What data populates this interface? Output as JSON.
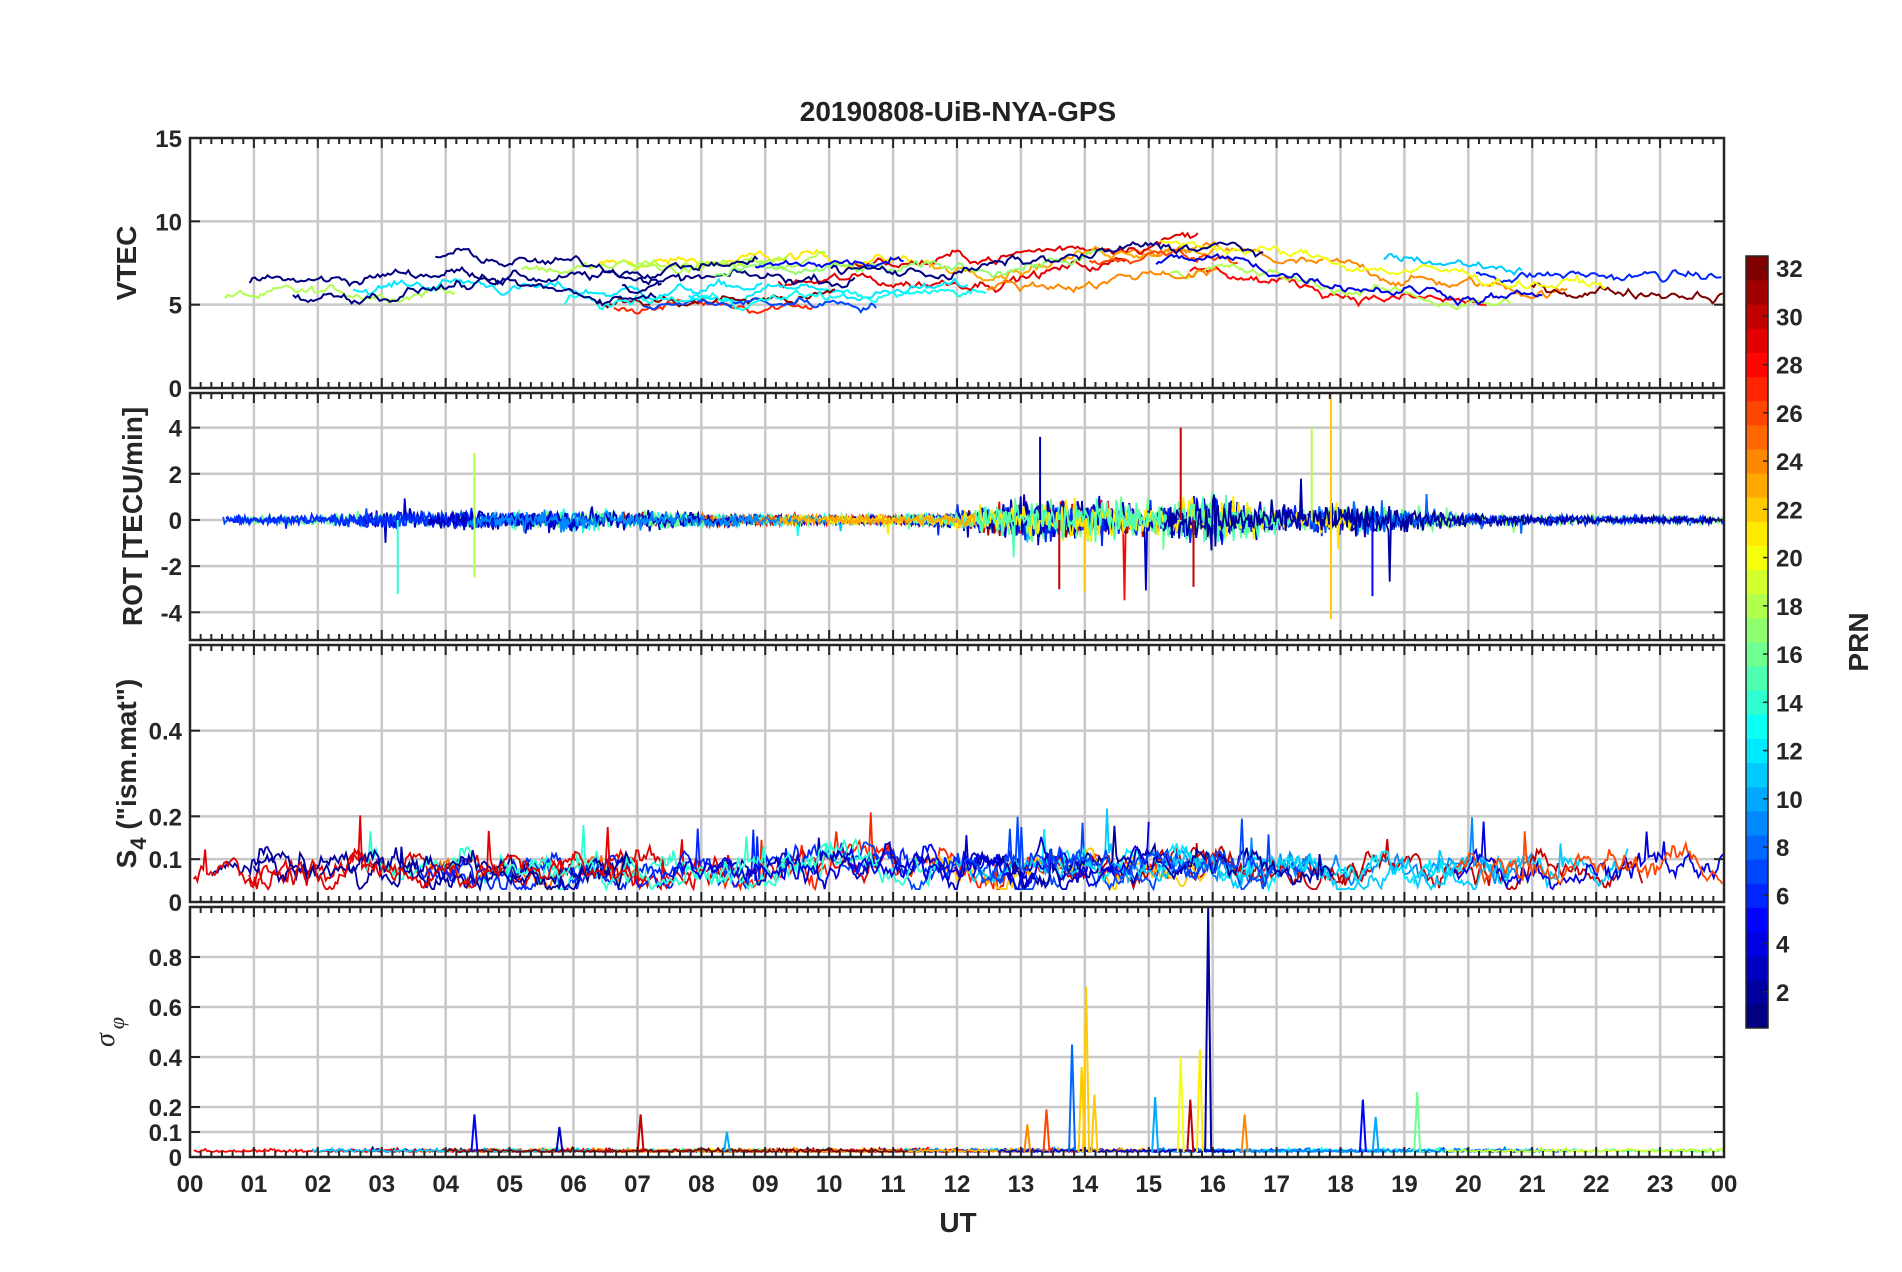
{
  "chart_data": [
    {
      "type": "line",
      "title": "20190808-UiB-NYA-GPS",
      "xlabel": "",
      "ylabel": "VTEC",
      "xlim": [
        0,
        24
      ],
      "ylim": [
        0,
        15
      ],
      "yticks": [
        "0",
        "5",
        "10",
        "15"
      ],
      "xticks": [
        "00",
        "01",
        "02",
        "03",
        "04",
        "05",
        "06",
        "07",
        "08",
        "09",
        "10",
        "11",
        "12",
        "13",
        "14",
        "15",
        "16",
        "17",
        "18",
        "19",
        "20",
        "21",
        "22",
        "23",
        "00"
      ],
      "grid": true,
      "series_note_values": {
        "baseline_by_hour": [
          6.0,
          5.8,
          6.0,
          6.5,
          6.8,
          6.2,
          6.0,
          6.2,
          6.3,
          6.4,
          6.6,
          6.4,
          6.8,
          7.2,
          7.6,
          8.2,
          8.0,
          7.2,
          6.8,
          6.4,
          6.0,
          5.8,
          5.6,
          5.6,
          5.5
        ]
      }
    },
    {
      "type": "line",
      "ylabel": "ROT [TECU/min]",
      "xlim": [
        0,
        24
      ],
      "ylim": [
        -5.2,
        5.5
      ],
      "yticks": [
        "-4",
        "-2",
        "0",
        "2",
        "4"
      ],
      "grid": true,
      "activity_by_hour": [
        0.15,
        0.2,
        0.25,
        0.4,
        0.45,
        0.4,
        0.5,
        0.45,
        0.3,
        0.25,
        0.2,
        0.2,
        0.3,
        0.9,
        1.0,
        0.7,
        1.2,
        0.6,
        0.7,
        0.6,
        0.3,
        0.2,
        0.2,
        0.2,
        0.15
      ]
    },
    {
      "type": "line",
      "ylabel": "S4 (\"ism.mat\")",
      "ylabel_main": "S",
      "ylabel_sub": "4",
      "ylabel_rest": " (\"ism.mat\")",
      "xlim": [
        0,
        24
      ],
      "ylim": [
        0,
        0.6
      ],
      "yticks": [
        "0",
        "0.1",
        "0.2",
        "0.4"
      ],
      "grid": true,
      "baseline_by_hour": [
        0.06,
        0.08,
        0.08,
        0.08,
        0.08,
        0.07,
        0.07,
        0.08,
        0.07,
        0.08,
        0.1,
        0.09,
        0.08,
        0.08,
        0.08,
        0.09,
        0.08,
        0.07,
        0.07,
        0.08,
        0.08,
        0.08,
        0.08,
        0.09,
        0.07
      ]
    },
    {
      "type": "line",
      "ylabel": "σ φ",
      "ylabel_main": "σ",
      "ylabel_sub": "φ",
      "xlabel": "UT",
      "xlim": [
        0,
        24
      ],
      "ylim": [
        0,
        1
      ],
      "yticks": [
        "0",
        "0.1",
        "0.2",
        "0.4",
        "0.6",
        "0.8"
      ],
      "grid": true,
      "spikes": [
        {
          "x": 4.45,
          "y": 0.17,
          "prn": 5
        },
        {
          "x": 5.78,
          "y": 0.12,
          "prn": 3
        },
        {
          "x": 7.05,
          "y": 0.17,
          "prn": 30
        },
        {
          "x": 8.4,
          "y": 0.1,
          "prn": 10
        },
        {
          "x": 13.1,
          "y": 0.13,
          "prn": 24
        },
        {
          "x": 13.4,
          "y": 0.19,
          "prn": 26
        },
        {
          "x": 13.8,
          "y": 0.45,
          "prn": 8
        },
        {
          "x": 13.95,
          "y": 0.36,
          "prn": 22
        },
        {
          "x": 14.02,
          "y": 0.68,
          "prn": 22
        },
        {
          "x": 14.15,
          "y": 0.25,
          "prn": 22
        },
        {
          "x": 15.1,
          "y": 0.24,
          "prn": 10
        },
        {
          "x": 15.5,
          "y": 0.4,
          "prn": 20
        },
        {
          "x": 15.65,
          "y": 0.23,
          "prn": 30
        },
        {
          "x": 15.8,
          "y": 0.43,
          "prn": 21
        },
        {
          "x": 15.93,
          "y": 1.0,
          "prn": 2
        },
        {
          "x": 16.5,
          "y": 0.17,
          "prn": 24
        },
        {
          "x": 18.35,
          "y": 0.23,
          "prn": 5
        },
        {
          "x": 18.55,
          "y": 0.16,
          "prn": 10
        },
        {
          "x": 19.2,
          "y": 0.26,
          "prn": 16
        }
      ]
    }
  ],
  "colorbar": {
    "label": "PRN",
    "min": 1,
    "max": 32,
    "ticks": [
      "2",
      "4",
      "6",
      "8",
      "10",
      "12",
      "14",
      "16",
      "18",
      "20",
      "22",
      "24",
      "26",
      "28",
      "30",
      "32"
    ],
    "colormap": "jet"
  }
}
